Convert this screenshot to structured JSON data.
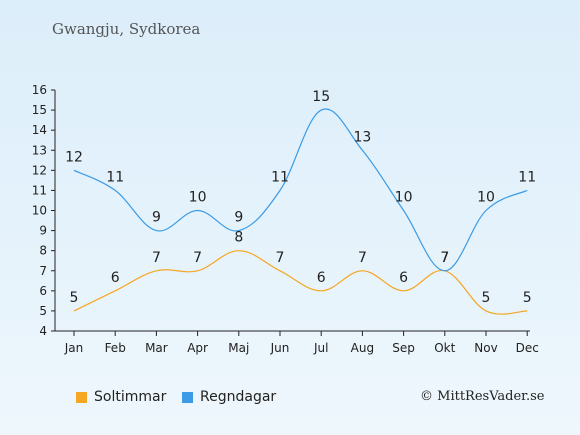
{
  "header": {
    "title": "Gwangju, Sydkorea"
  },
  "chart_data": {
    "type": "line",
    "categories": [
      "Jan",
      "Feb",
      "Mar",
      "Apr",
      "Maj",
      "Jun",
      "Jul",
      "Aug",
      "Sep",
      "Okt",
      "Nov",
      "Dec"
    ],
    "ylim": [
      4,
      16
    ],
    "yticks": [
      4,
      5,
      6,
      7,
      8,
      9,
      10,
      11,
      12,
      13,
      14,
      15,
      16
    ],
    "grid": false,
    "legend": "bottom-left",
    "series": [
      {
        "name": "Soltimmar",
        "color": "#f5a623",
        "values": [
          5,
          6,
          7,
          7,
          8,
          7,
          6,
          7,
          6,
          7,
          5,
          5
        ]
      },
      {
        "name": "Regndagar",
        "color": "#3b9be6",
        "values": [
          12,
          11,
          9,
          10,
          9,
          11,
          15,
          13,
          10,
          7,
          10,
          11
        ]
      }
    ]
  },
  "footer": {
    "copyright": "© MittResVader.se"
  }
}
